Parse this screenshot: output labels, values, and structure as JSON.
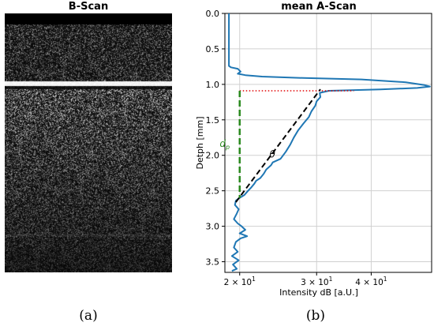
{
  "captions": {
    "a": "(a)",
    "b": "(b)"
  },
  "bscan": {
    "title": "B-Scan"
  },
  "chart_data": {
    "type": "line",
    "title": "mean A-Scan",
    "xlabel": "Intensity dB [a.U.]",
    "ylabel": "Detph [mm]",
    "x_scale": "log",
    "xlim": [
      18.5,
      55
    ],
    "ylim": [
      0.0,
      3.65
    ],
    "y_inverted": true,
    "grid": true,
    "xticks": [
      20,
      30,
      40
    ],
    "xtick_labels": [
      {
        "base": "2 × 10",
        "exp": "1"
      },
      {
        "base": "3 × 10",
        "exp": "1"
      },
      {
        "base": "4 × 10",
        "exp": "1"
      }
    ],
    "yticks": [
      0.0,
      0.5,
      1.0,
      1.5,
      2.0,
      2.5,
      3.0,
      3.5
    ],
    "ytick_labels": [
      "0.0",
      "0.5",
      "1.0",
      "1.5",
      "2.0",
      "2.5",
      "3.0",
      "3.5"
    ],
    "series": [
      {
        "color": "#1f77b4",
        "points": [
          [
            18.9,
            0.0
          ],
          [
            18.9,
            0.3
          ],
          [
            18.9,
            0.6
          ],
          [
            18.9,
            0.74
          ],
          [
            19.1,
            0.76
          ],
          [
            19.8,
            0.78
          ],
          [
            20.1,
            0.82
          ],
          [
            19.8,
            0.85
          ],
          [
            20.6,
            0.87
          ],
          [
            22.5,
            0.89
          ],
          [
            28.0,
            0.91
          ],
          [
            38.0,
            0.93
          ],
          [
            48.0,
            0.97
          ],
          [
            53.0,
            1.01
          ],
          [
            54.5,
            1.03
          ],
          [
            51.0,
            1.05
          ],
          [
            42.0,
            1.07
          ],
          [
            32.0,
            1.09
          ],
          [
            30.5,
            1.12
          ],
          [
            30.6,
            1.18
          ],
          [
            30.0,
            1.24
          ],
          [
            29.8,
            1.3
          ],
          [
            29.2,
            1.38
          ],
          [
            28.8,
            1.46
          ],
          [
            28.0,
            1.55
          ],
          [
            27.2,
            1.65
          ],
          [
            26.6,
            1.75
          ],
          [
            26.1,
            1.85
          ],
          [
            25.5,
            1.95
          ],
          [
            24.8,
            2.05
          ],
          [
            23.8,
            2.1
          ],
          [
            23.6,
            2.14
          ],
          [
            23.0,
            2.2
          ],
          [
            22.7,
            2.26
          ],
          [
            22.3,
            2.32
          ],
          [
            21.8,
            2.36
          ],
          [
            21.6,
            2.4
          ],
          [
            21.2,
            2.46
          ],
          [
            20.9,
            2.5
          ],
          [
            20.5,
            2.56
          ],
          [
            20.0,
            2.6
          ],
          [
            19.6,
            2.64
          ],
          [
            19.5,
            2.7
          ],
          [
            19.9,
            2.76
          ],
          [
            19.7,
            2.82
          ],
          [
            19.4,
            2.9
          ],
          [
            19.8,
            2.96
          ],
          [
            20.2,
            3.0
          ],
          [
            20.6,
            3.05
          ],
          [
            20.0,
            3.1
          ],
          [
            20.8,
            3.14
          ],
          [
            20.1,
            3.17
          ],
          [
            19.6,
            3.22
          ],
          [
            19.4,
            3.3
          ],
          [
            19.8,
            3.36
          ],
          [
            19.2,
            3.42
          ],
          [
            19.9,
            3.48
          ],
          [
            19.3,
            3.54
          ],
          [
            19.7,
            3.6
          ],
          [
            19.2,
            3.63
          ]
        ]
      }
    ],
    "annotations": {
      "surface_line": {
        "color": "#e00000",
        "y": 1.09,
        "x_range": [
          20.0,
          36.5
        ]
      },
      "slope_line": {
        "color": "#000000",
        "from": [
          19.6,
          2.66
        ],
        "to": [
          30.6,
          1.07
        ]
      },
      "depth_line": {
        "color": "#2a8a1e",
        "x": 20.0,
        "y_range": [
          1.09,
          2.6
        ]
      },
      "dp_label": {
        "text": "d",
        "sub": "p",
        "color": "#2a8a1e",
        "x": 18.0,
        "y": 1.88
      },
      "theta_label": {
        "text": "θ",
        "color": "#000000",
        "x": 23.4,
        "y": 2.03
      }
    }
  }
}
